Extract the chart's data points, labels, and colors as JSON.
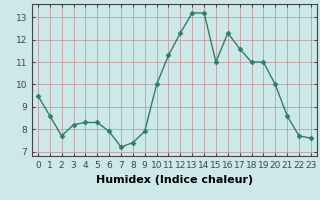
{
  "x": [
    0,
    1,
    2,
    3,
    4,
    5,
    6,
    7,
    8,
    9,
    10,
    11,
    12,
    13,
    14,
    15,
    16,
    17,
    18,
    19,
    20,
    21,
    22,
    23
  ],
  "y": [
    9.5,
    8.6,
    7.7,
    8.2,
    8.3,
    8.3,
    7.9,
    7.2,
    7.4,
    7.9,
    10.0,
    11.3,
    12.3,
    13.2,
    13.2,
    11.0,
    12.3,
    11.6,
    11.0,
    11.0,
    10.0,
    8.6,
    7.7,
    7.6
  ],
  "line_color": "#2e7d6e",
  "marker": "D",
  "marker_size": 2.5,
  "bg_color": "#cce8e8",
  "grid_color": "#c09090",
  "xlabel": "Humidex (Indice chaleur)",
  "xlabel_fontsize": 8,
  "xlim": [
    -0.5,
    23.5
  ],
  "ylim": [
    6.8,
    13.6
  ],
  "yticks": [
    7,
    8,
    9,
    10,
    11,
    12,
    13
  ],
  "xticks": [
    0,
    1,
    2,
    3,
    4,
    5,
    6,
    7,
    8,
    9,
    10,
    11,
    12,
    13,
    14,
    15,
    16,
    17,
    18,
    19,
    20,
    21,
    22,
    23
  ],
  "tick_fontsize": 6.5,
  "line_width": 1.0
}
